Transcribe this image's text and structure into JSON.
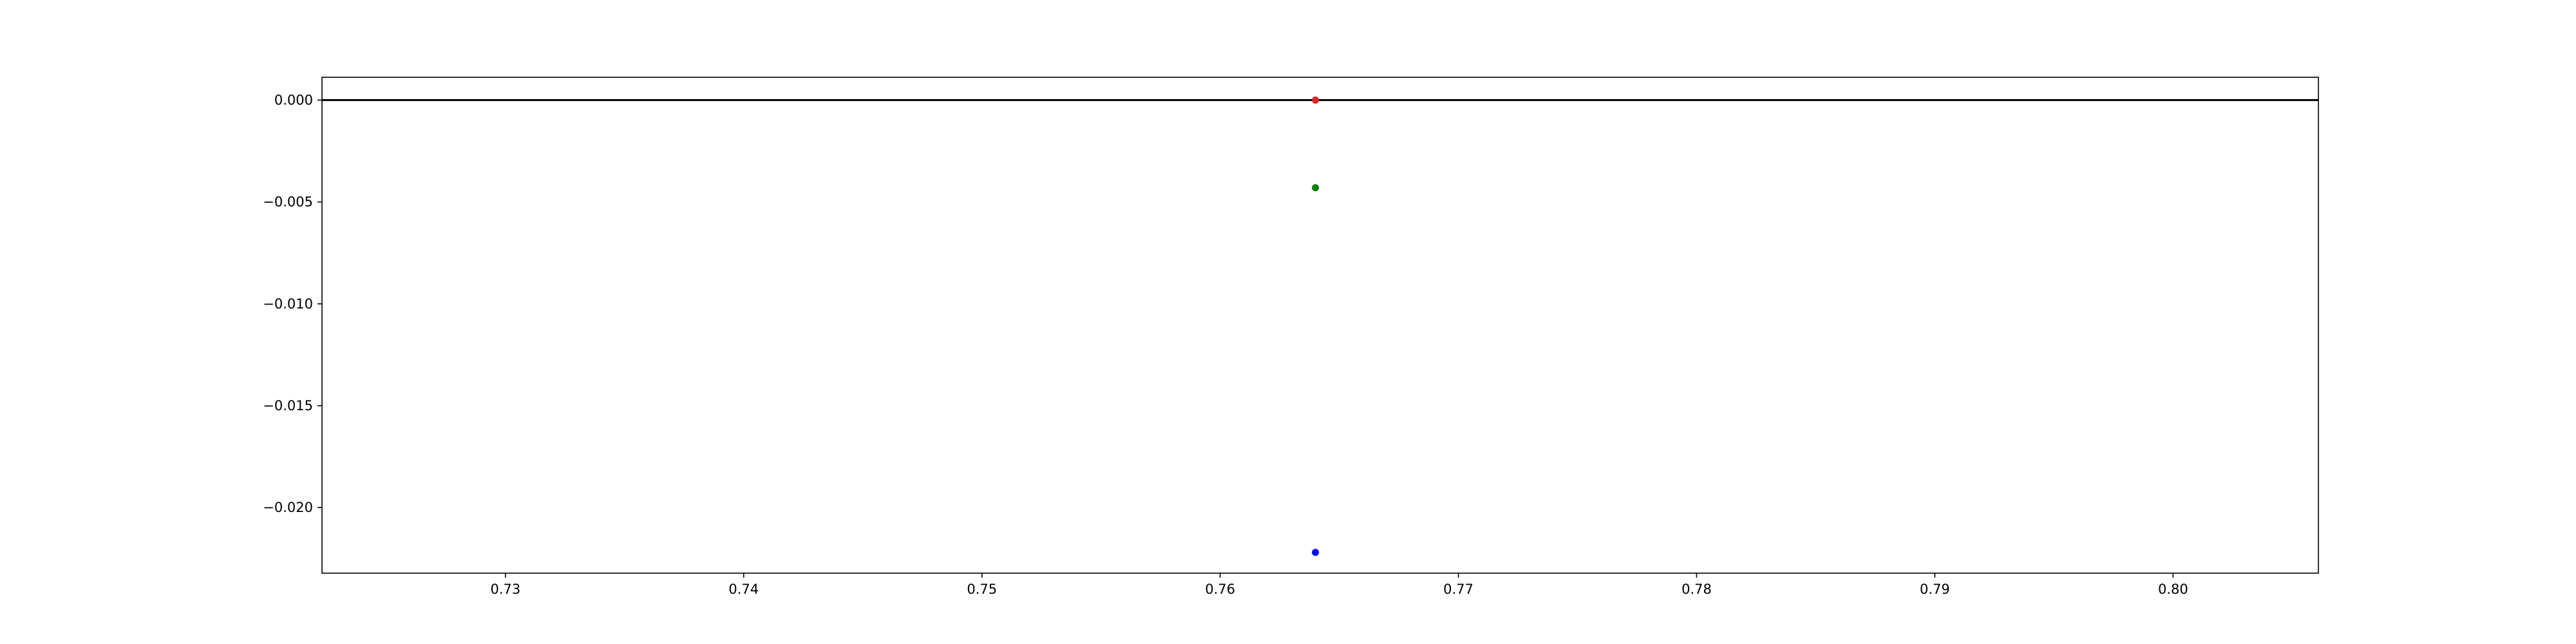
{
  "chart_data": {
    "type": "scatter",
    "title": "",
    "xlabel": "",
    "ylabel": "",
    "xlim": [
      0.7223,
      0.8061
    ],
    "ylim": [
      -0.02322,
      0.00112
    ],
    "grid": false,
    "legend": null,
    "x_ticks": [
      0.73,
      0.74,
      0.75,
      0.76,
      0.77,
      0.78,
      0.79,
      0.8
    ],
    "x_tick_labels": [
      "0.73",
      "0.74",
      "0.75",
      "0.76",
      "0.77",
      "0.78",
      "0.79",
      "0.80"
    ],
    "y_ticks": [
      0.0,
      -0.005,
      -0.01,
      -0.015,
      -0.02
    ],
    "y_tick_labels": [
      "0.000",
      "−0.005",
      "−0.010",
      "−0.015",
      "−0.020"
    ],
    "reference_line": {
      "y": 0.0,
      "color": "#000000"
    },
    "points": [
      {
        "name": "red-point",
        "x": 0.764,
        "y": 0.0,
        "color": "#d62728"
      },
      {
        "name": "green-point",
        "x": 0.764,
        "y": -0.0043,
        "color": "#008000"
      },
      {
        "name": "blue-point",
        "x": 0.764,
        "y": -0.0222,
        "color": "#0000ff"
      }
    ]
  }
}
